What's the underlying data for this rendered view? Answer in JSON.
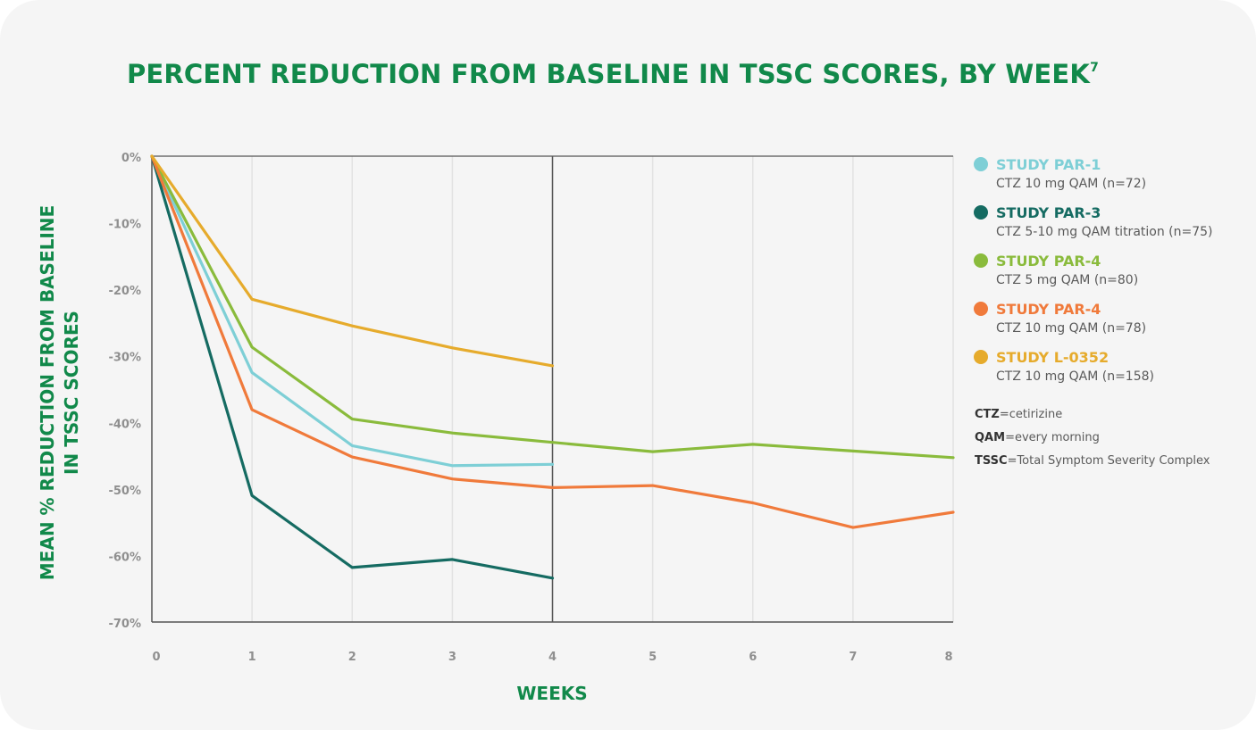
{
  "chart_data": {
    "type": "line",
    "title": "PERCENT REDUCTION FROM BASELINE IN TSSC SCORES, BY WEEK",
    "title_superscript": "7",
    "xlabel": "WEEKS",
    "ylabel_lines": [
      "MEAN % REDUCTION FROM BASELINE",
      "IN TSSC SCORES"
    ],
    "xlim": [
      0,
      8
    ],
    "ylim": [
      -70,
      0
    ],
    "x_ticks": [
      "0",
      "1",
      "2",
      "3",
      "4",
      "5",
      "6",
      "7",
      "8"
    ],
    "y_ticks": [
      {
        "value": 0,
        "label": "0%"
      },
      {
        "value": -10,
        "label": "-10%"
      },
      {
        "value": -20,
        "label": "-20%"
      },
      {
        "value": -30,
        "label": "-30%"
      },
      {
        "value": -40,
        "label": "-40%"
      },
      {
        "value": -50,
        "label": "-50%"
      },
      {
        "value": -60,
        "label": "-60%"
      },
      {
        "value": -70,
        "label": "-70%"
      }
    ],
    "grid": "vertical",
    "reference_line_x": 4,
    "legend_position": "right",
    "series": [
      {
        "name": "STUDY PAR-1",
        "description": "CTZ 10 mg QAM (n=72)",
        "color": "#7ecfd6",
        "x": [
          0,
          1,
          2,
          3,
          4
        ],
        "values": [
          0,
          -32.5,
          -43.5,
          -46.5,
          -46.3
        ]
      },
      {
        "name": "STUDY PAR-3",
        "description": "CTZ 5-10 mg QAM titration (n=75)",
        "color": "#156b62",
        "x": [
          0,
          1,
          2,
          3,
          4
        ],
        "values": [
          0,
          -51,
          -61.8,
          -60.6,
          -63.4
        ]
      },
      {
        "name": "STUDY PAR-4",
        "description": "CTZ 5 mg QAM (n=80)",
        "color": "#8abb3c",
        "x": [
          0,
          1,
          2,
          3,
          4,
          5,
          6,
          7,
          8
        ],
        "values": [
          0,
          -28.7,
          -39.5,
          -41.6,
          -43,
          -44.4,
          -43.3,
          -44.3,
          -45.3
        ]
      },
      {
        "name": "STUDY PAR-4",
        "description": "CTZ 10 mg QAM (n=78)",
        "color": "#f07a3b",
        "x": [
          0,
          1,
          2,
          3,
          4,
          5,
          6,
          7,
          8
        ],
        "values": [
          0,
          -38.1,
          -45.2,
          -48.5,
          -49.8,
          -49.5,
          -52.1,
          -55.8,
          -53.5
        ]
      },
      {
        "name": "STUDY L-0352",
        "description": "CTZ 10 mg QAM (n=158)",
        "color": "#e6ab2c",
        "x": [
          0,
          1,
          2,
          3,
          4
        ],
        "values": [
          0,
          -21.5,
          -25.5,
          -28.8,
          -31.5
        ]
      }
    ]
  },
  "abbreviations": [
    {
      "term": "CTZ",
      "definition": "=cetirizine"
    },
    {
      "term": "QAM",
      "definition": "=every morning"
    },
    {
      "term": "TSSC",
      "definition": "=Total Symptom Severity Complex"
    }
  ]
}
